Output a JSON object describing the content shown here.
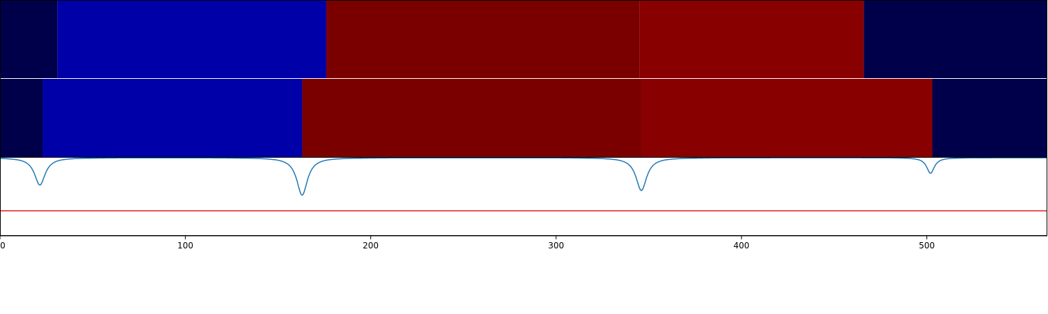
{
  "chart_data": {
    "type": "heatmap",
    "title": "",
    "xlabel": "",
    "ylabel": "",
    "xlim": [
      0,
      565
    ],
    "x_ticks": [
      0,
      100,
      200,
      300,
      400,
      500
    ],
    "x_tick_labels": [
      "0",
      "100",
      "200",
      "300",
      "400",
      "500"
    ],
    "grid": false,
    "legend": "none",
    "bands": [
      {
        "segments": [
          {
            "x0": 0,
            "x1": 31,
            "color": "#00004a"
          },
          {
            "x0": 31,
            "x1": 176,
            "color": "#0000a8"
          },
          {
            "x0": 176,
            "x1": 345,
            "color": "#7a0000"
          },
          {
            "x0": 345,
            "x1": 466,
            "color": "#880000"
          },
          {
            "x0": 466,
            "x1": 565,
            "color": "#00004a"
          }
        ]
      },
      {
        "segments": [
          {
            "x0": 0,
            "x1": 23,
            "color": "#00004a"
          },
          {
            "x0": 23,
            "x1": 163,
            "color": "#0000a8"
          },
          {
            "x0": 163,
            "x1": 346,
            "color": "#7a0000"
          },
          {
            "x0": 346,
            "x1": 503,
            "color": "#880000"
          },
          {
            "x0": 503,
            "x1": 565,
            "color": "#00004a"
          }
        ]
      }
    ],
    "line_panel": {
      "ylim": [
        -1.0,
        0.0
      ],
      "threshold": -0.68,
      "threshold_color": "#e31a1c",
      "line_color": "#1f77b4",
      "dips": [
        {
          "x": 21.5,
          "depth": 0.35,
          "width": 3.5
        },
        {
          "x": 163,
          "depth": 0.48,
          "width": 3.5
        },
        {
          "x": 346,
          "depth": 0.42,
          "width": 3.5
        },
        {
          "x": 502,
          "depth": 0.2,
          "width": 2.5
        }
      ]
    }
  }
}
